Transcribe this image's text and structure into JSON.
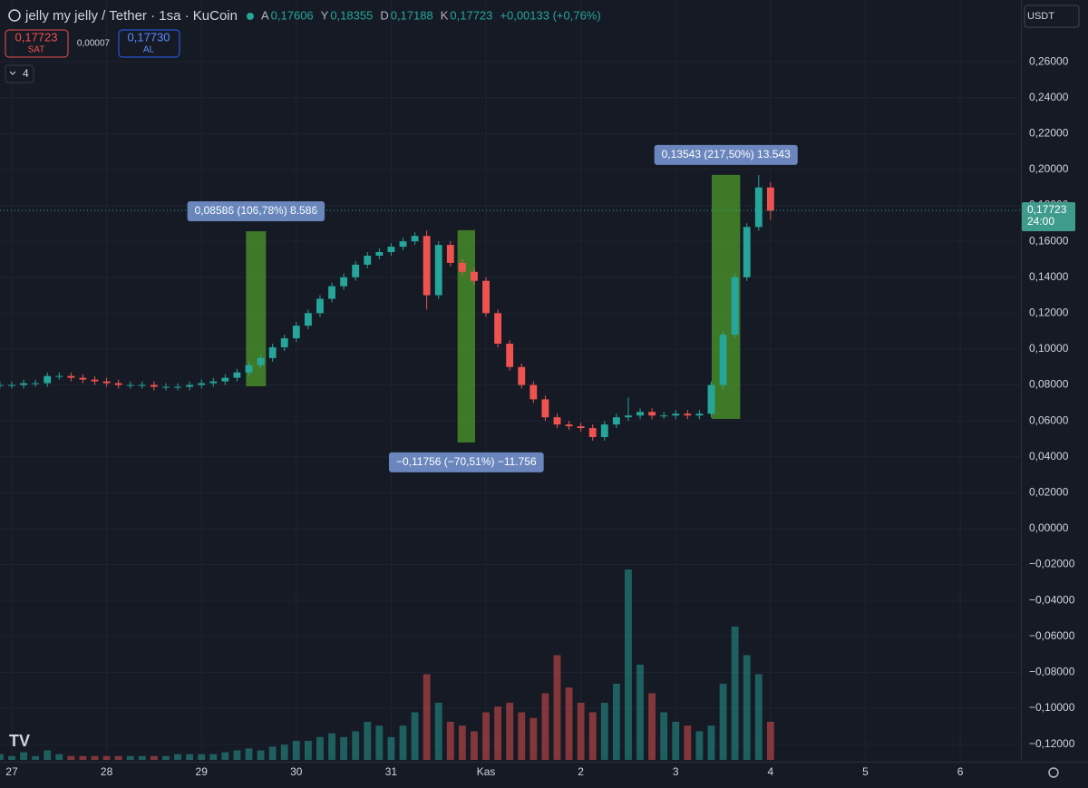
{
  "toolbar": {
    "title": "jelly my jelly / Tether · 1sa · KuCoin",
    "ohlc": [
      {
        "key": "A",
        "value": "0,17606"
      },
      {
        "key": "Y",
        "value": "0,18355"
      },
      {
        "key": "D",
        "value": "0,17188"
      },
      {
        "key": "K",
        "value": "0,17723"
      }
    ],
    "change": "+0,00133 (+0,76%)",
    "sell": {
      "price": "0,17723",
      "label": "SAT"
    },
    "spread": "0,00007",
    "buy": {
      "price": "0,17730",
      "label": "AL"
    },
    "indicators": "4",
    "currency": "USDT"
  },
  "chart_data": {
    "type": "candlestick",
    "x": [
      -0.125,
      0,
      0.125,
      0.25,
      0.375,
      0.5,
      0.625,
      0.75,
      0.875,
      1,
      1.125,
      1.25,
      1.375,
      1.5,
      1.625,
      1.75,
      1.875,
      2,
      2.125,
      2.25,
      2.375,
      2.5,
      2.625,
      2.75,
      2.875,
      3,
      3.125,
      3.25,
      3.375,
      3.5,
      3.625,
      3.75,
      3.875,
      4,
      4.125,
      4.25,
      4.375,
      4.5,
      4.625,
      4.75,
      4.875,
      5,
      5.125,
      5.25,
      5.375,
      5.5,
      5.625,
      5.75,
      5.875,
      6,
      6.125,
      6.25,
      6.375,
      6.5,
      6.625,
      6.75,
      6.875,
      7,
      7.125,
      7.25,
      7.375,
      7.5,
      7.625,
      7.75,
      7.875,
      8
    ],
    "open": [
      0.08,
      0.08,
      0.08,
      0.081,
      0.081,
      0.085,
      0.085,
      0.084,
      0.083,
      0.082,
      0.081,
      0.08,
      0.08,
      0.08,
      0.079,
      0.079,
      0.079,
      0.08,
      0.081,
      0.082,
      0.084,
      0.087,
      0.091,
      0.095,
      0.101,
      0.106,
      0.113,
      0.12,
      0.128,
      0.135,
      0.14,
      0.147,
      0.152,
      0.154,
      0.157,
      0.16,
      0.163,
      0.13,
      0.158,
      0.148,
      0.143,
      0.138,
      0.12,
      0.103,
      0.09,
      0.08,
      0.072,
      0.062,
      0.058,
      0.057,
      0.056,
      0.051,
      0.058,
      0.062,
      0.063,
      0.065,
      0.063,
      0.063,
      0.064,
      0.063,
      0.064,
      0.08,
      0.108,
      0.14,
      0.168,
      0.19
    ],
    "high": [
      0.082,
      0.082,
      0.083,
      0.083,
      0.087,
      0.087,
      0.087,
      0.086,
      0.085,
      0.084,
      0.083,
      0.082,
      0.082,
      0.082,
      0.081,
      0.081,
      0.082,
      0.083,
      0.084,
      0.086,
      0.089,
      0.093,
      0.097,
      0.103,
      0.108,
      0.115,
      0.122,
      0.13,
      0.137,
      0.142,
      0.149,
      0.154,
      0.156,
      0.159,
      0.162,
      0.165,
      0.166,
      0.16,
      0.16,
      0.15,
      0.145,
      0.14,
      0.122,
      0.105,
      0.092,
      0.082,
      0.074,
      0.064,
      0.06,
      0.059,
      0.058,
      0.06,
      0.064,
      0.073,
      0.067,
      0.067,
      0.065,
      0.066,
      0.066,
      0.066,
      0.082,
      0.11,
      0.142,
      0.17,
      0.197,
      0.193
    ],
    "low": [
      0.078,
      0.078,
      0.078,
      0.079,
      0.079,
      0.083,
      0.082,
      0.081,
      0.08,
      0.079,
      0.078,
      0.078,
      0.078,
      0.077,
      0.077,
      0.077,
      0.077,
      0.078,
      0.079,
      0.08,
      0.082,
      0.085,
      0.089,
      0.093,
      0.099,
      0.104,
      0.111,
      0.118,
      0.126,
      0.133,
      0.138,
      0.145,
      0.15,
      0.152,
      0.155,
      0.158,
      0.122,
      0.128,
      0.146,
      0.141,
      0.136,
      0.118,
      0.101,
      0.088,
      0.078,
      0.07,
      0.06,
      0.056,
      0.055,
      0.054,
      0.049,
      0.049,
      0.056,
      0.06,
      0.061,
      0.061,
      0.061,
      0.061,
      0.061,
      0.061,
      0.062,
      0.078,
      0.106,
      0.138,
      0.166,
      0.172
    ],
    "close": [
      0.08,
      0.08,
      0.081,
      0.081,
      0.085,
      0.085,
      0.084,
      0.083,
      0.082,
      0.081,
      0.08,
      0.08,
      0.08,
      0.079,
      0.079,
      0.079,
      0.08,
      0.081,
      0.082,
      0.084,
      0.087,
      0.091,
      0.095,
      0.101,
      0.106,
      0.113,
      0.12,
      0.128,
      0.135,
      0.14,
      0.147,
      0.152,
      0.154,
      0.157,
      0.16,
      0.163,
      0.13,
      0.158,
      0.148,
      0.143,
      0.138,
      0.12,
      0.103,
      0.09,
      0.08,
      0.072,
      0.062,
      0.058,
      0.057,
      0.056,
      0.051,
      0.058,
      0.062,
      0.063,
      0.065,
      0.063,
      0.063,
      0.064,
      0.063,
      0.064,
      0.08,
      0.108,
      0.14,
      0.168,
      0.19,
      0.177
    ],
    "volume": [
      3,
      2,
      4,
      2,
      5,
      3,
      2,
      2,
      2,
      2,
      2,
      2,
      2,
      2,
      2,
      3,
      3,
      3,
      3,
      4,
      5,
      6,
      5,
      7,
      8,
      10,
      10,
      12,
      14,
      12,
      15,
      20,
      18,
      12,
      18,
      25,
      45,
      30,
      20,
      18,
      15,
      25,
      28,
      30,
      25,
      22,
      35,
      55,
      38,
      30,
      25,
      30,
      40,
      100,
      50,
      35,
      25,
      20,
      18,
      15,
      18,
      40,
      70,
      55,
      45,
      20
    ],
    "up_color": "#26a69a",
    "down_color": "#ef5350",
    "xlim": [
      -0.124,
      10.63
    ],
    "ylim": [
      -0.1298,
      0.2944
    ],
    "xticks": [
      {
        "value": 0,
        "label": "27"
      },
      {
        "value": 1,
        "label": "28"
      },
      {
        "value": 2,
        "label": "29"
      },
      {
        "value": 3,
        "label": "30"
      },
      {
        "value": 4,
        "label": "31"
      },
      {
        "value": 5,
        "label": "Kas"
      },
      {
        "value": 6,
        "label": "2"
      },
      {
        "value": 7,
        "label": "3"
      },
      {
        "value": 8,
        "label": "4"
      },
      {
        "value": 9,
        "label": "5"
      },
      {
        "value": 10,
        "label": "6"
      }
    ],
    "yticks": [
      {
        "value": 0.26,
        "label": "0,26000"
      },
      {
        "value": 0.24,
        "label": "0,24000"
      },
      {
        "value": 0.22,
        "label": "0,22000"
      },
      {
        "value": 0.2,
        "label": "0,20000"
      },
      {
        "value": 0.18,
        "label": "0,18000"
      },
      {
        "value": 0.16,
        "label": "0,16000"
      },
      {
        "value": 0.14,
        "label": "0,14000"
      },
      {
        "value": 0.12,
        "label": "0,12000"
      },
      {
        "value": 0.1,
        "label": "0,10000"
      },
      {
        "value": 0.08,
        "label": "0,08000"
      },
      {
        "value": 0.06,
        "label": "0,06000"
      },
      {
        "value": 0.04,
        "label": "0,04000"
      },
      {
        "value": 0.02,
        "label": "0,02000"
      },
      {
        "value": 0,
        "label": "0,00000"
      },
      {
        "value": -0.02,
        "label": "−0,02000"
      },
      {
        "value": -0.04,
        "label": "−0,04000"
      },
      {
        "value": -0.06,
        "label": "−0,06000"
      },
      {
        "value": -0.08,
        "label": "−0,08000"
      },
      {
        "value": -0.1,
        "label": "−0,10000"
      },
      {
        "value": -0.12,
        "label": "−0,12000"
      }
    ],
    "grid": true,
    "last_price": {
      "value": 0.17723,
      "label": "0,17723",
      "countdown": "24:00"
    },
    "measures": [
      {
        "label": "0,08586 (106,78%) 8.586",
        "x": [
          2.47,
          2.68
        ],
        "y": [
          0.0793,
          0.1656
        ],
        "label_side": "top"
      },
      {
        "label": "−0,11756 (−70,51%) −11.756",
        "x": [
          4.7,
          4.885
        ],
        "y": [
          0.1662,
          0.048
        ],
        "label_side": "bottom"
      },
      {
        "label": "0,13543 (217,50%) 13.543",
        "x": [
          7.38,
          7.68
        ],
        "y": [
          0.0611,
          0.197
        ],
        "label_side": "top"
      }
    ],
    "measure_color": "#4c9a2a"
  }
}
